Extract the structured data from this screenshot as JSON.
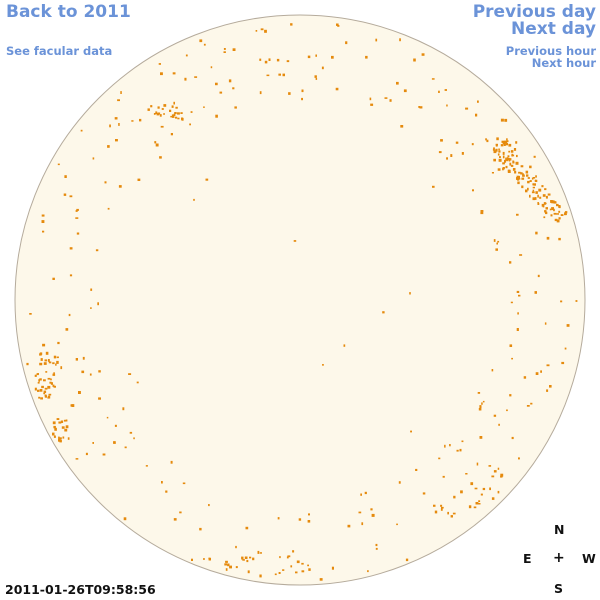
{
  "nav": {
    "back": "Back to 2011",
    "facular": "See facular data",
    "prev_day": "Previous day",
    "next_day": "Next day",
    "prev_hour": "Previous hour",
    "next_hour": "Next hour"
  },
  "timestamp": "2011-01-26T09:58:56",
  "compass": {
    "n": "N",
    "e": "E",
    "center": "+",
    "w": "W",
    "s": "S"
  },
  "colors": {
    "disk_fill": "#fdf8ea",
    "disk_stroke": "#b5ab9c",
    "feature": "#e58a0d",
    "link": "#6b93d8"
  }
}
